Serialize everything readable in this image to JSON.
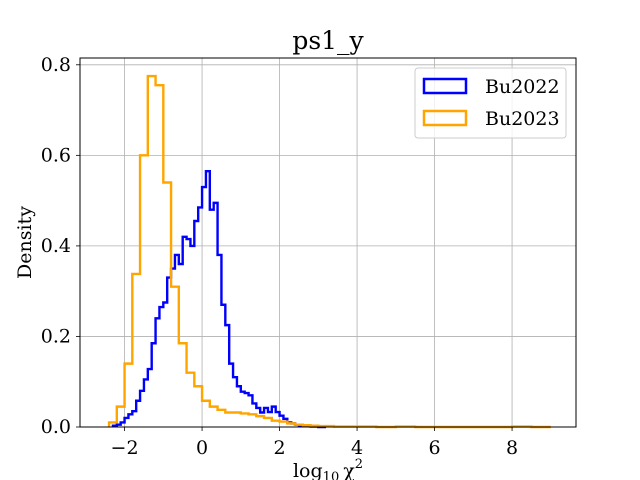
{
  "chart_data": {
    "type": "histogram-step",
    "title": "ps1_y",
    "xlabel": "log₁₀ χ²",
    "ylabel": "Density",
    "xlim": [
      -3.15,
      9.65
    ],
    "ylim": [
      0,
      0.815
    ],
    "xticks": [
      -2,
      0,
      2,
      4,
      6,
      8
    ],
    "xtick_labels": [
      "−2",
      "0",
      "2",
      "4",
      "6",
      "8"
    ],
    "yticks": [
      0.0,
      0.2,
      0.4,
      0.6,
      0.8
    ],
    "ytick_labels": [
      "0.0",
      "0.2",
      "0.4",
      "0.6",
      "0.8"
    ],
    "grid": true,
    "legend_position": "top-right",
    "series": [
      {
        "name": "Bu2022",
        "color": "#0000ff",
        "edges": [
          -2.3,
          -2.2,
          -2.1,
          -2.0,
          -1.9,
          -1.8,
          -1.7,
          -1.6,
          -1.5,
          -1.4,
          -1.3,
          -1.2,
          -1.1,
          -1.0,
          -0.9,
          -0.8,
          -0.7,
          -0.6,
          -0.5,
          -0.4,
          -0.3,
          -0.2,
          -0.1,
          0.0,
          0.1,
          0.2,
          0.3,
          0.4,
          0.5,
          0.6,
          0.7,
          0.8,
          0.9,
          1.0,
          1.1,
          1.2,
          1.3,
          1.4,
          1.5,
          1.6,
          1.7,
          1.8,
          1.9,
          2.0,
          2.1,
          2.2,
          2.3,
          2.4,
          2.5,
          2.6,
          2.7,
          2.8,
          2.9,
          3.0,
          3.1,
          3.2
        ],
        "values": [
          0.003,
          0.005,
          0.01,
          0.02,
          0.028,
          0.035,
          0.058,
          0.08,
          0.105,
          0.128,
          0.185,
          0.24,
          0.265,
          0.275,
          0.33,
          0.35,
          0.38,
          0.36,
          0.42,
          0.415,
          0.4,
          0.455,
          0.485,
          0.53,
          0.565,
          0.48,
          0.495,
          0.38,
          0.27,
          0.225,
          0.14,
          0.11,
          0.09,
          0.078,
          0.075,
          0.07,
          0.052,
          0.042,
          0.032,
          0.042,
          0.033,
          0.045,
          0.033,
          0.025,
          0.018,
          0.01,
          0.008,
          0.005,
          0.003,
          0.002,
          0.002,
          0.001,
          0.001,
          0.0,
          0.0
        ]
      },
      {
        "name": "Bu2023",
        "color": "#ffa500",
        "edges": [
          -2.4,
          -2.2,
          -2.0,
          -1.8,
          -1.6,
          -1.4,
          -1.2,
          -1.0,
          -0.8,
          -0.6,
          -0.4,
          -0.2,
          0.0,
          0.2,
          0.4,
          0.6,
          0.8,
          1.0,
          1.2,
          1.4,
          1.6,
          1.8,
          2.0,
          2.2,
          2.4,
          2.6,
          2.8,
          3.0,
          3.2,
          3.4,
          3.6,
          3.8,
          4.0,
          4.5,
          5.0,
          5.5,
          6.0,
          6.5,
          7.0,
          7.5,
          8.0,
          8.5,
          9.0
        ],
        "values": [
          0.01,
          0.045,
          0.14,
          0.338,
          0.6,
          0.775,
          0.755,
          0.54,
          0.31,
          0.185,
          0.12,
          0.09,
          0.058,
          0.045,
          0.038,
          0.032,
          0.032,
          0.03,
          0.028,
          0.024,
          0.02,
          0.014,
          0.012,
          0.008,
          0.005,
          0.004,
          0.003,
          0.002,
          0.002,
          0.001,
          0.001,
          0.001,
          0.001,
          0.0,
          0.001,
          0.0,
          0.0,
          0.0,
          0.0,
          0.0,
          0.001,
          0.0
        ]
      }
    ]
  }
}
